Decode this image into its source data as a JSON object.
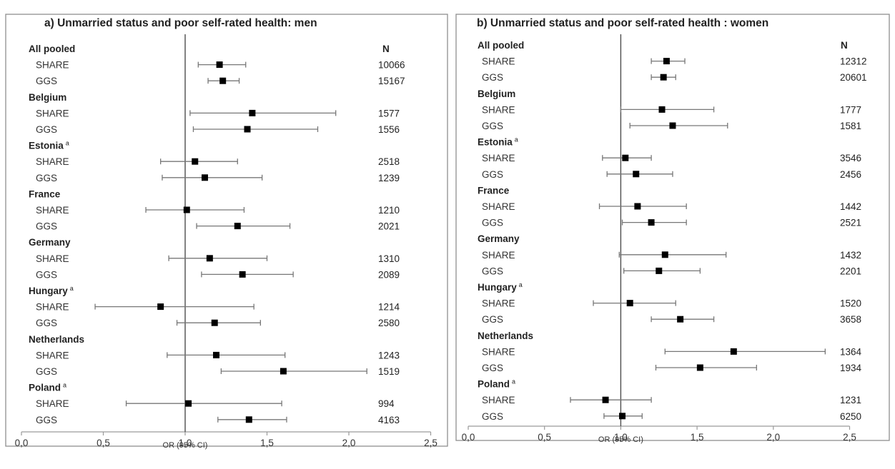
{
  "chart_data": [
    {
      "type": "forest",
      "title": "a) Unmarried status and poor self-rated health: men",
      "xlabel": "OR (95% CI)",
      "n_header": "N",
      "xlim": [
        0,
        2.5
      ],
      "xticks": [
        "0,0",
        "0,5",
        "1,0",
        "1,5",
        "2,0",
        "2,5"
      ],
      "reference_line": 1.0,
      "groups": [
        {
          "name": "All pooled",
          "rows": [
            {
              "label": "SHARE",
              "or": 1.21,
              "lo": 1.08,
              "hi": 1.37,
              "n": "10066"
            },
            {
              "label": "GGS",
              "or": 1.23,
              "lo": 1.14,
              "hi": 1.33,
              "n": "15167"
            }
          ]
        },
        {
          "name": "Belgium",
          "rows": [
            {
              "label": "SHARE",
              "or": 1.41,
              "lo": 1.03,
              "hi": 1.92,
              "n": "1577"
            },
            {
              "label": "GGS",
              "or": 1.38,
              "lo": 1.05,
              "hi": 1.81,
              "n": "1556"
            }
          ]
        },
        {
          "name": "Estonia",
          "superscript": "a",
          "rows": [
            {
              "label": "SHARE",
              "or": 1.06,
              "lo": 0.85,
              "hi": 1.32,
              "n": "2518"
            },
            {
              "label": "GGS",
              "or": 1.12,
              "lo": 0.86,
              "hi": 1.47,
              "n": "1239"
            }
          ]
        },
        {
          "name": "France",
          "rows": [
            {
              "label": "SHARE",
              "or": 1.01,
              "lo": 0.76,
              "hi": 1.36,
              "n": "1210"
            },
            {
              "label": "GGS",
              "or": 1.32,
              "lo": 1.07,
              "hi": 1.64,
              "n": "2021"
            }
          ]
        },
        {
          "name": "Germany",
          "rows": [
            {
              "label": "SHARE",
              "or": 1.15,
              "lo": 0.9,
              "hi": 1.5,
              "n": "1310"
            },
            {
              "label": "GGS",
              "or": 1.35,
              "lo": 1.1,
              "hi": 1.66,
              "n": "2089"
            }
          ]
        },
        {
          "name": "Hungary",
          "superscript": "a",
          "rows": [
            {
              "label": "SHARE",
              "or": 0.85,
              "lo": 0.45,
              "hi": 1.42,
              "n": "1214"
            },
            {
              "label": "GGS",
              "or": 1.18,
              "lo": 0.95,
              "hi": 1.46,
              "n": "2580"
            }
          ]
        },
        {
          "name": "Netherlands",
          "rows": [
            {
              "label": "SHARE",
              "or": 1.19,
              "lo": 0.89,
              "hi": 1.61,
              "n": "1243"
            },
            {
              "label": "GGS",
              "or": 1.6,
              "lo": 1.22,
              "hi": 2.11,
              "n": "1519"
            }
          ]
        },
        {
          "name": "Poland",
          "superscript": "a",
          "rows": [
            {
              "label": "SHARE",
              "or": 1.02,
              "lo": 0.64,
              "hi": 1.59,
              "n": "994"
            },
            {
              "label": "GGS",
              "or": 1.39,
              "lo": 1.2,
              "hi": 1.62,
              "n": "4163"
            }
          ]
        }
      ]
    },
    {
      "type": "forest",
      "title": "b) Unmarried status and poor self-rated health : women",
      "xlabel": "OR (95% CI)",
      "n_header": "N",
      "xlim": [
        0,
        2.5
      ],
      "xticks": [
        "0,0",
        "0,5",
        "1,0",
        "1,5",
        "2,0",
        "2,5"
      ],
      "reference_line": 1.0,
      "groups": [
        {
          "name": "All pooled",
          "rows": [
            {
              "label": "SHARE",
              "or": 1.3,
              "lo": 1.2,
              "hi": 1.42,
              "n": "12312"
            },
            {
              "label": "GGS",
              "or": 1.28,
              "lo": 1.2,
              "hi": 1.36,
              "n": "20601"
            }
          ]
        },
        {
          "name": "Belgium",
          "rows": [
            {
              "label": "SHARE",
              "or": 1.27,
              "lo": 1.0,
              "hi": 1.61,
              "n": "1777"
            },
            {
              "label": "GGS",
              "or": 1.34,
              "lo": 1.06,
              "hi": 1.7,
              "n": "1581"
            }
          ]
        },
        {
          "name": "Estonia",
          "superscript": "a",
          "rows": [
            {
              "label": "SHARE",
              "or": 1.03,
              "lo": 0.88,
              "hi": 1.2,
              "n": "3546"
            },
            {
              "label": "GGS",
              "or": 1.1,
              "lo": 0.91,
              "hi": 1.34,
              "n": "2456"
            }
          ]
        },
        {
          "name": "France",
          "rows": [
            {
              "label": "SHARE",
              "or": 1.11,
              "lo": 0.86,
              "hi": 1.43,
              "n": "1442"
            },
            {
              "label": "GGS",
              "or": 1.2,
              "lo": 1.01,
              "hi": 1.43,
              "n": "2521"
            }
          ]
        },
        {
          "name": "Germany",
          "rows": [
            {
              "label": "SHARE",
              "or": 1.29,
              "lo": 0.99,
              "hi": 1.69,
              "n": "1432"
            },
            {
              "label": "GGS",
              "or": 1.25,
              "lo": 1.02,
              "hi": 1.52,
              "n": "2201"
            }
          ]
        },
        {
          "name": "Hungary",
          "superscript": "a",
          "rows": [
            {
              "label": "SHARE",
              "or": 1.06,
              "lo": 0.82,
              "hi": 1.36,
              "n": "1520"
            },
            {
              "label": "GGS",
              "or": 1.39,
              "lo": 1.2,
              "hi": 1.61,
              "n": "3658"
            }
          ]
        },
        {
          "name": "Netherlands",
          "rows": [
            {
              "label": "SHARE",
              "or": 1.74,
              "lo": 1.29,
              "hi": 2.34,
              "n": "1364"
            },
            {
              "label": "GGS",
              "or": 1.52,
              "lo": 1.23,
              "hi": 1.89,
              "n": "1934"
            }
          ]
        },
        {
          "name": "Poland",
          "superscript": "a",
          "rows": [
            {
              "label": "SHARE",
              "or": 0.9,
              "lo": 0.67,
              "hi": 1.2,
              "n": "1231"
            },
            {
              "label": "GGS",
              "or": 1.01,
              "lo": 0.89,
              "hi": 1.14,
              "n": "6250"
            }
          ]
        }
      ]
    }
  ],
  "colors": {
    "frame": "#8e8e8e",
    "ci_line": "#777777",
    "marker": "#000000",
    "reference": "#4d4d4d",
    "axis": "#9a9a9a",
    "text": "#222222"
  }
}
